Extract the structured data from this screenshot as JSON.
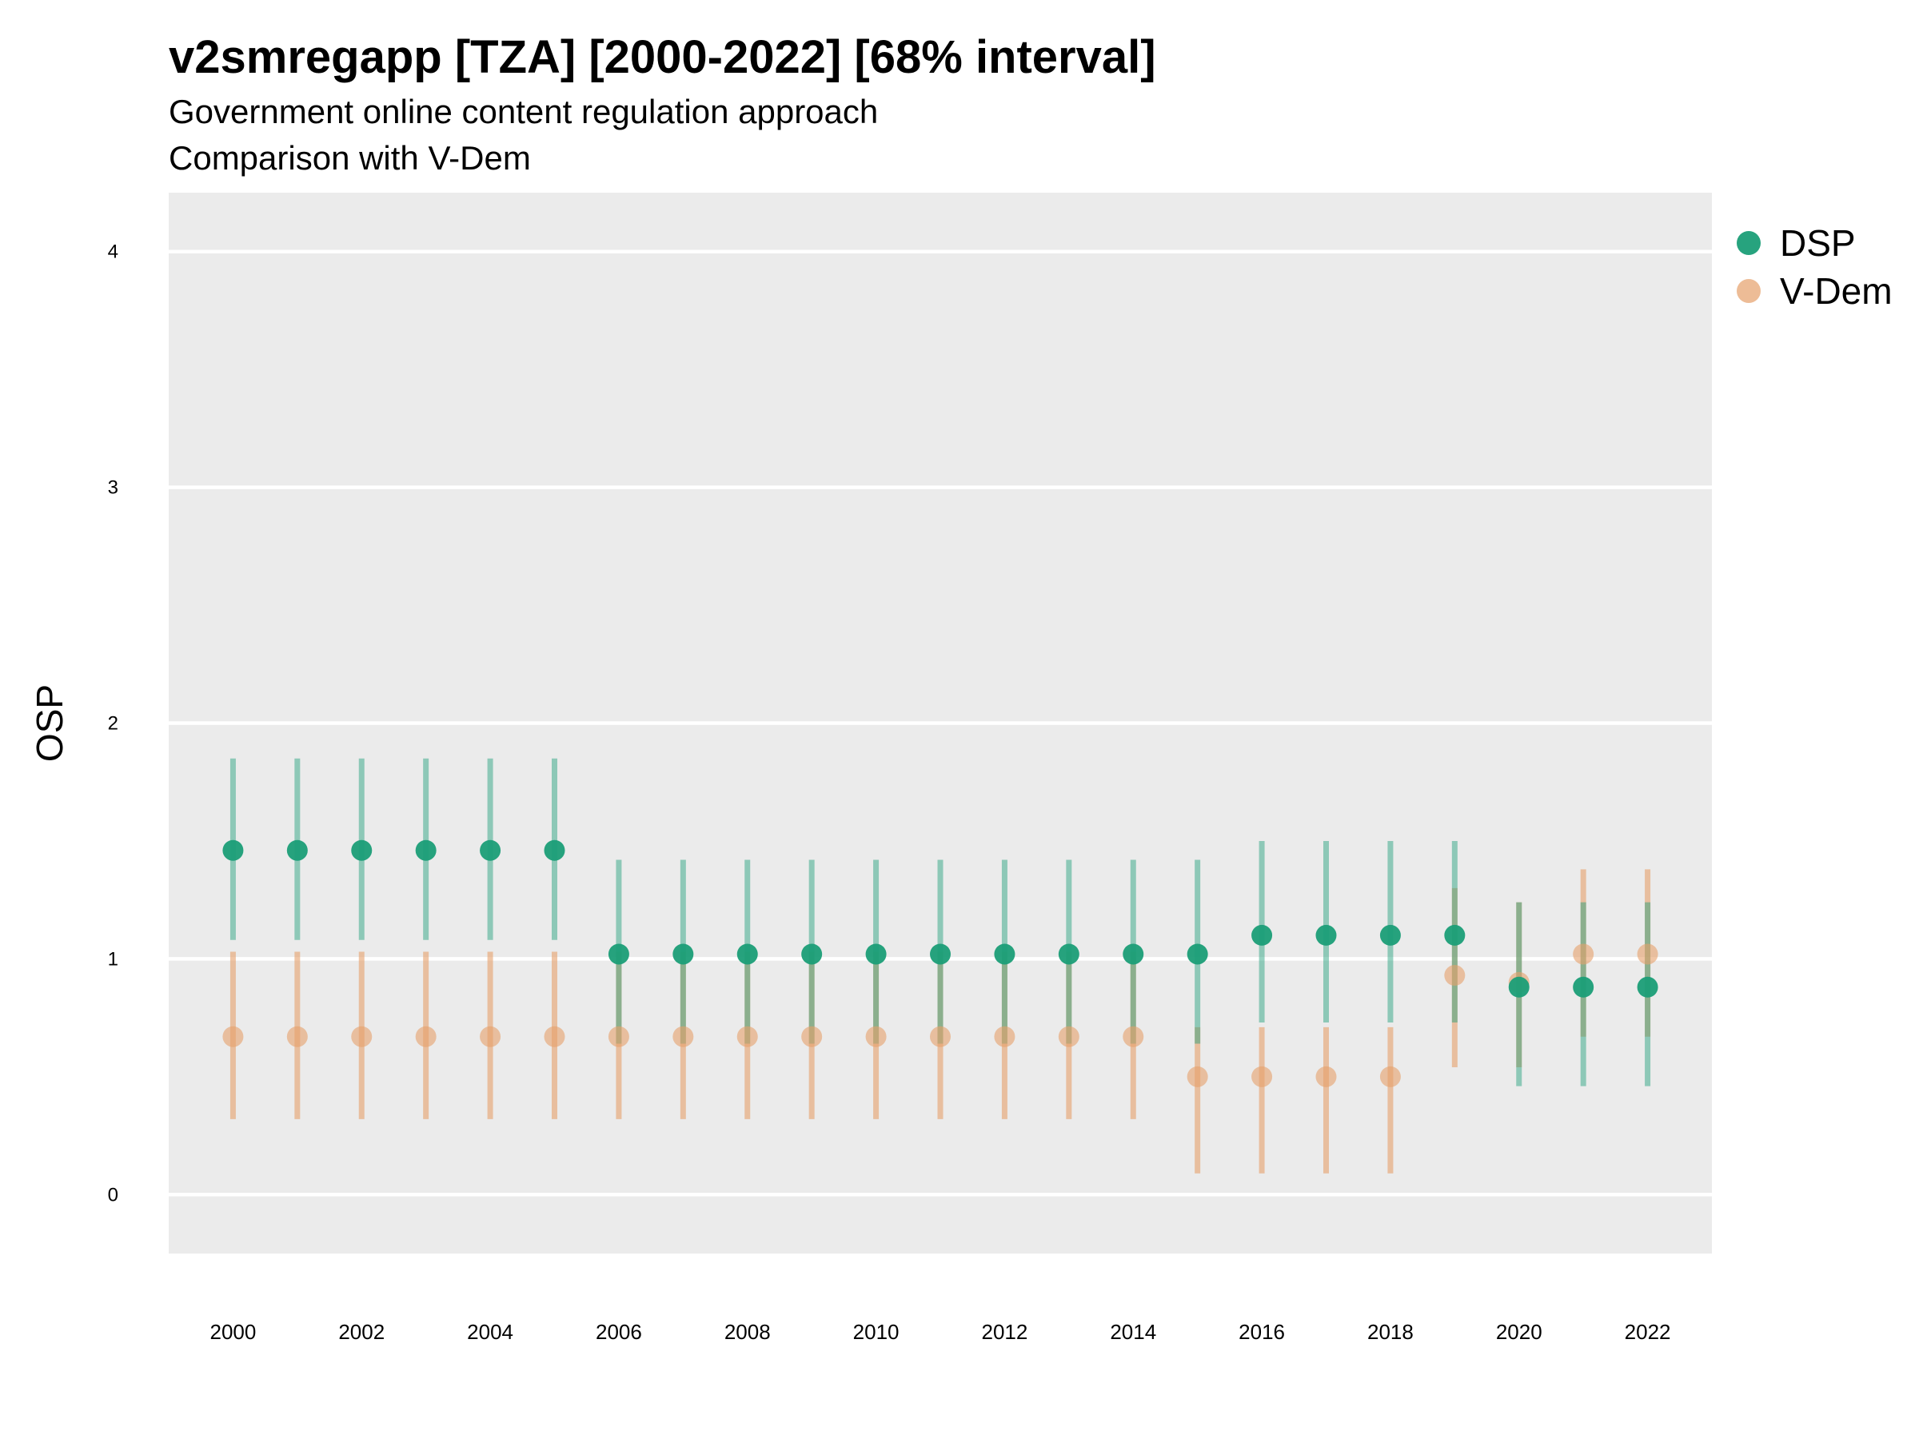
{
  "title": "v2smregapp [TZA] [2000-2022] [68% interval]",
  "subtitle": "Government online content regulation approach",
  "caption": "Comparison with V-Dem",
  "colors": {
    "panel": "#EBEBEB",
    "gridline": "#FFFFFF",
    "dsp": "#1B9E77",
    "vdem": "#E6A06A"
  },
  "legend": {
    "placement": "right",
    "items": [
      {
        "label": "DSP",
        "color": "#1B9E77"
      },
      {
        "label": "V-Dem",
        "color": "#E6A06A"
      }
    ]
  },
  "chart_data": {
    "type": "scatter",
    "title": "v2smregapp [TZA] [2000-2022] [68% interval]",
    "ylabel": "OSP",
    "xlabel": "",
    "ylim": [
      -0.25,
      4.25
    ],
    "yticks": [
      0,
      1,
      2,
      3,
      4
    ],
    "xticks": [
      2000,
      2002,
      2004,
      2006,
      2008,
      2010,
      2012,
      2014,
      2016,
      2018,
      2020,
      2022
    ],
    "x": [
      2000,
      2001,
      2002,
      2003,
      2004,
      2005,
      2006,
      2007,
      2008,
      2009,
      2010,
      2011,
      2012,
      2013,
      2014,
      2015,
      2016,
      2017,
      2018,
      2019,
      2020,
      2021,
      2022
    ],
    "grid": true,
    "series": [
      {
        "name": "DSP",
        "color": "#1B9E77",
        "values": [
          1.46,
          1.46,
          1.46,
          1.46,
          1.46,
          1.46,
          1.02,
          1.02,
          1.02,
          1.02,
          1.02,
          1.02,
          1.02,
          1.02,
          1.02,
          1.02,
          1.1,
          1.1,
          1.1,
          1.1,
          0.88,
          0.88,
          0.88
        ],
        "lower": [
          1.08,
          1.08,
          1.08,
          1.08,
          1.08,
          1.08,
          0.64,
          0.64,
          0.64,
          0.64,
          0.64,
          0.64,
          0.64,
          0.64,
          0.64,
          0.64,
          0.73,
          0.73,
          0.73,
          0.73,
          0.46,
          0.46,
          0.46
        ],
        "upper": [
          1.85,
          1.85,
          1.85,
          1.85,
          1.85,
          1.85,
          1.42,
          1.42,
          1.42,
          1.42,
          1.42,
          1.42,
          1.42,
          1.42,
          1.42,
          1.42,
          1.5,
          1.5,
          1.5,
          1.5,
          1.24,
          1.24,
          1.24
        ]
      },
      {
        "name": "V-Dem",
        "color": "#E6A06A",
        "values": [
          0.67,
          0.67,
          0.67,
          0.67,
          0.67,
          0.67,
          0.67,
          0.67,
          0.67,
          0.67,
          0.67,
          0.67,
          0.67,
          0.67,
          0.67,
          0.5,
          0.5,
          0.5,
          0.5,
          0.93,
          0.9,
          1.02,
          1.02
        ],
        "lower": [
          0.32,
          0.32,
          0.32,
          0.32,
          0.32,
          0.32,
          0.32,
          0.32,
          0.32,
          0.32,
          0.32,
          0.32,
          0.32,
          0.32,
          0.32,
          0.09,
          0.09,
          0.09,
          0.09,
          0.54,
          0.54,
          0.67,
          0.67
        ],
        "upper": [
          1.03,
          1.03,
          1.03,
          1.03,
          1.03,
          1.03,
          1.03,
          1.03,
          1.03,
          1.03,
          1.03,
          1.03,
          1.03,
          1.03,
          1.03,
          0.71,
          0.71,
          0.71,
          0.71,
          1.3,
          1.24,
          1.38,
          1.38
        ]
      }
    ]
  }
}
